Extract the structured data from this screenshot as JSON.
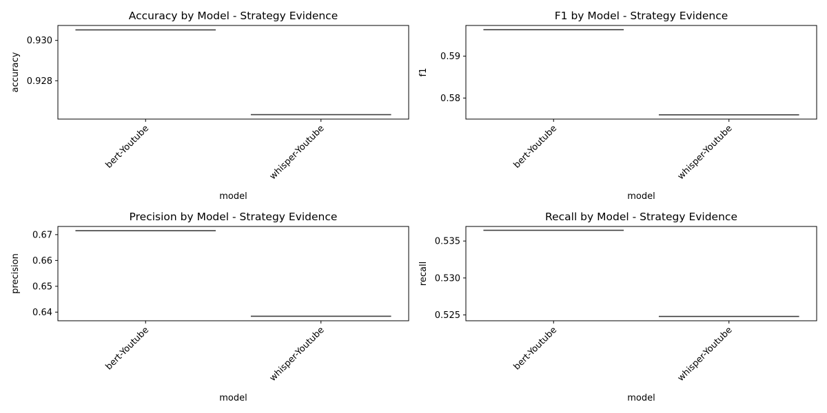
{
  "chart_data": [
    {
      "type": "box",
      "title": "Accuracy by Model - Strategy Evidence",
      "xlabel": "model",
      "ylabel": "accuracy",
      "categories": [
        "bert-Youtube",
        "whisper-Youtube"
      ],
      "values": [
        0.93052,
        0.92632
      ],
      "ylim": [
        0.9261,
        0.93074
      ],
      "yticks": [
        0.928,
        0.93
      ],
      "ytick_labels": [
        "0.928",
        "0.930"
      ]
    },
    {
      "type": "box",
      "title": "F1 by Model - Strategy Evidence",
      "xlabel": "model",
      "ylabel": "f1",
      "categories": [
        "bert-Youtube",
        "whisper-Youtube"
      ],
      "values": [
        0.5963,
        0.576
      ],
      "ylim": [
        0.57498,
        0.59732
      ],
      "yticks": [
        0.58,
        0.59
      ],
      "ytick_labels": [
        "0.58",
        "0.59"
      ]
    },
    {
      "type": "box",
      "title": "Precision by Model - Strategy Evidence",
      "xlabel": "model",
      "ylabel": "precision",
      "categories": [
        "bert-Youtube",
        "whisper-Youtube"
      ],
      "values": [
        0.6715,
        0.6384
      ],
      "ylim": [
        0.63665,
        0.67316
      ],
      "yticks": [
        0.64,
        0.65,
        0.66,
        0.67
      ],
      "ytick_labels": [
        "0.64",
        "0.65",
        "0.66",
        "0.67"
      ]
    },
    {
      "type": "box",
      "title": "Recall by Model - Strategy Evidence",
      "xlabel": "model",
      "ylabel": "recall",
      "categories": [
        "bert-Youtube",
        "whisper-Youtube"
      ],
      "values": [
        0.53645,
        0.5248
      ],
      "ylim": [
        0.52421,
        0.53697
      ],
      "yticks": [
        0.525,
        0.53,
        0.535
      ],
      "ytick_labels": [
        "0.525",
        "0.530",
        "0.535"
      ]
    }
  ]
}
